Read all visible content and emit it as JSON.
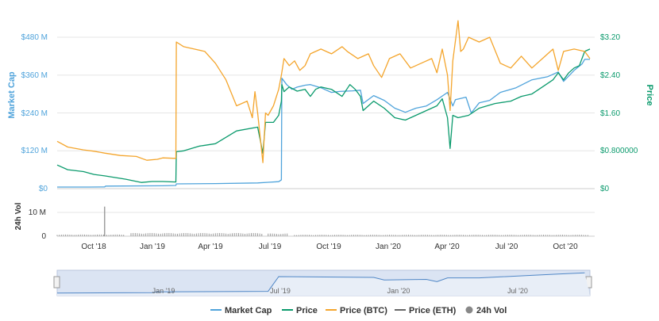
{
  "chart_data": {
    "type": "line",
    "title": "",
    "y_left": {
      "label": "Market Cap",
      "ticks": [
        "$0",
        "$120 M",
        "$240 M",
        "$360 M",
        "$480 M"
      ],
      "ylim": [
        0,
        480
      ]
    },
    "y_right": {
      "label": "Price",
      "ticks": [
        "$0",
        "$0.800000",
        "$1.60",
        "$2.40",
        "$3.20"
      ],
      "ylim": [
        0,
        3.2
      ]
    },
    "volume_axis": {
      "label": "24h Vol",
      "ticks": [
        "0",
        "10 M"
      ]
    },
    "x_ticks": [
      "Oct '18",
      "Jan '19",
      "Apr '19",
      "Jul '19",
      "Oct '19",
      "Jan '20",
      "Apr '20",
      "Jul '20",
      "Oct '20"
    ],
    "navigator_ticks": [
      "Jan '19",
      "Jul '19",
      "Jan '20",
      "Jul '20"
    ],
    "grid": true,
    "legend_position": "bottom-center",
    "series": [
      {
        "name": "Market Cap",
        "color": "#4fa3db",
        "axis": "left",
        "points": [
          [
            0,
            5
          ],
          [
            0.06,
            5
          ],
          [
            0.09,
            5.5
          ],
          [
            0.092,
            8
          ],
          [
            0.2,
            9
          ],
          [
            0.225,
            10
          ],
          [
            0.226,
            15
          ],
          [
            0.3,
            16
          ],
          [
            0.38,
            18
          ],
          [
            0.4,
            20
          ],
          [
            0.42,
            22
          ],
          [
            0.425,
            28
          ],
          [
            0.426,
            350
          ],
          [
            0.435,
            330
          ],
          [
            0.445,
            315
          ],
          [
            0.455,
            322
          ],
          [
            0.47,
            328
          ],
          [
            0.48,
            330
          ],
          [
            0.5,
            320
          ],
          [
            0.52,
            305
          ],
          [
            0.535,
            308
          ],
          [
            0.56,
            310
          ],
          [
            0.575,
            312
          ],
          [
            0.58,
            270
          ],
          [
            0.6,
            295
          ],
          [
            0.62,
            280
          ],
          [
            0.64,
            255
          ],
          [
            0.66,
            242
          ],
          [
            0.68,
            255
          ],
          [
            0.7,
            262
          ],
          [
            0.72,
            282
          ],
          [
            0.74,
            305
          ],
          [
            0.75,
            262
          ],
          [
            0.755,
            282
          ],
          [
            0.775,
            290
          ],
          [
            0.785,
            240
          ],
          [
            0.8,
            272
          ],
          [
            0.82,
            280
          ],
          [
            0.84,
            305
          ],
          [
            0.87,
            320
          ],
          [
            0.9,
            345
          ],
          [
            0.93,
            355
          ],
          [
            0.95,
            370
          ],
          [
            0.96,
            340
          ],
          [
            0.98,
            375
          ],
          [
            0.995,
            395
          ],
          [
            1.0,
            410
          ],
          [
            1.01,
            410
          ]
        ]
      },
      {
        "name": "Price",
        "color": "#0a9a6c",
        "axis": "right",
        "points": [
          [
            0,
            0.5
          ],
          [
            0.02,
            0.4
          ],
          [
            0.05,
            0.36
          ],
          [
            0.07,
            0.3
          ],
          [
            0.09,
            0.27
          ],
          [
            0.13,
            0.2
          ],
          [
            0.16,
            0.13
          ],
          [
            0.18,
            0.15
          ],
          [
            0.2,
            0.15
          ],
          [
            0.225,
            0.14
          ],
          [
            0.226,
            0.78
          ],
          [
            0.24,
            0.8
          ],
          [
            0.27,
            0.9
          ],
          [
            0.3,
            0.95
          ],
          [
            0.34,
            1.22
          ],
          [
            0.38,
            1.3
          ],
          [
            0.39,
            0.75
          ],
          [
            0.395,
            1.4
          ],
          [
            0.41,
            1.4
          ],
          [
            0.42,
            1.55
          ],
          [
            0.425,
            1.85
          ],
          [
            0.426,
            2.2
          ],
          [
            0.43,
            2.05
          ],
          [
            0.44,
            2.15
          ],
          [
            0.455,
            2.06
          ],
          [
            0.47,
            2.1
          ],
          [
            0.48,
            1.95
          ],
          [
            0.49,
            2.1
          ],
          [
            0.5,
            2.15
          ],
          [
            0.52,
            2.1
          ],
          [
            0.54,
            1.95
          ],
          [
            0.555,
            2.2
          ],
          [
            0.565,
            2.1
          ],
          [
            0.575,
            1.95
          ],
          [
            0.58,
            1.65
          ],
          [
            0.6,
            1.85
          ],
          [
            0.62,
            1.7
          ],
          [
            0.64,
            1.5
          ],
          [
            0.66,
            1.45
          ],
          [
            0.68,
            1.55
          ],
          [
            0.7,
            1.65
          ],
          [
            0.72,
            1.75
          ],
          [
            0.73,
            1.9
          ],
          [
            0.74,
            1.5
          ],
          [
            0.745,
            0.85
          ],
          [
            0.75,
            1.55
          ],
          [
            0.76,
            1.5
          ],
          [
            0.78,
            1.55
          ],
          [
            0.8,
            1.7
          ],
          [
            0.83,
            1.8
          ],
          [
            0.86,
            1.85
          ],
          [
            0.88,
            1.95
          ],
          [
            0.9,
            2.0
          ],
          [
            0.92,
            2.15
          ],
          [
            0.94,
            2.3
          ],
          [
            0.95,
            2.45
          ],
          [
            0.96,
            2.3
          ],
          [
            0.97,
            2.45
          ],
          [
            0.98,
            2.55
          ],
          [
            0.99,
            2.6
          ],
          [
            1.0,
            2.9
          ],
          [
            1.01,
            2.95
          ]
        ]
      },
      {
        "name": "Price (BTC)",
        "color": "#f4a52c",
        "axis": "right",
        "points": [
          [
            0,
            1.0
          ],
          [
            0.02,
            0.88
          ],
          [
            0.05,
            0.82
          ],
          [
            0.07,
            0.79
          ],
          [
            0.09,
            0.75
          ],
          [
            0.12,
            0.7
          ],
          [
            0.15,
            0.68
          ],
          [
            0.17,
            0.6
          ],
          [
            0.19,
            0.62
          ],
          [
            0.2,
            0.65
          ],
          [
            0.225,
            0.64
          ],
          [
            0.226,
            3.1
          ],
          [
            0.24,
            3.0
          ],
          [
            0.26,
            2.95
          ],
          [
            0.28,
            2.9
          ],
          [
            0.3,
            2.65
          ],
          [
            0.32,
            2.3
          ],
          [
            0.34,
            1.75
          ],
          [
            0.36,
            1.85
          ],
          [
            0.37,
            1.5
          ],
          [
            0.375,
            2.05
          ],
          [
            0.38,
            1.6
          ],
          [
            0.39,
            0.55
          ],
          [
            0.395,
            1.6
          ],
          [
            0.4,
            1.55
          ],
          [
            0.41,
            1.75
          ],
          [
            0.42,
            2.1
          ],
          [
            0.425,
            2.4
          ],
          [
            0.43,
            2.75
          ],
          [
            0.44,
            2.6
          ],
          [
            0.45,
            2.7
          ],
          [
            0.46,
            2.5
          ],
          [
            0.47,
            2.6
          ],
          [
            0.48,
            2.85
          ],
          [
            0.5,
            2.95
          ],
          [
            0.52,
            2.85
          ],
          [
            0.54,
            3.0
          ],
          [
            0.55,
            2.9
          ],
          [
            0.57,
            2.75
          ],
          [
            0.59,
            2.85
          ],
          [
            0.6,
            2.6
          ],
          [
            0.615,
            2.35
          ],
          [
            0.63,
            2.75
          ],
          [
            0.65,
            2.85
          ],
          [
            0.67,
            2.55
          ],
          [
            0.69,
            2.65
          ],
          [
            0.71,
            2.75
          ],
          [
            0.72,
            2.45
          ],
          [
            0.73,
            2.95
          ],
          [
            0.74,
            2.4
          ],
          [
            0.745,
            1.65
          ],
          [
            0.75,
            2.7
          ],
          [
            0.76,
            3.55
          ],
          [
            0.765,
            2.9
          ],
          [
            0.77,
            2.95
          ],
          [
            0.78,
            3.2
          ],
          [
            0.8,
            3.1
          ],
          [
            0.82,
            3.2
          ],
          [
            0.84,
            2.65
          ],
          [
            0.86,
            2.55
          ],
          [
            0.88,
            2.8
          ],
          [
            0.9,
            2.55
          ],
          [
            0.92,
            2.75
          ],
          [
            0.94,
            2.95
          ],
          [
            0.95,
            2.5
          ],
          [
            0.96,
            2.9
          ],
          [
            0.98,
            2.95
          ],
          [
            1.0,
            2.9
          ],
          [
            1.01,
            2.75
          ]
        ]
      },
      {
        "name": "Price (ETH)",
        "color": "#666666",
        "axis": "right",
        "points": []
      }
    ],
    "volume": {
      "name": "24h Vol",
      "color": "#888888",
      "spike_position": 0.09,
      "spike_value": 14,
      "blocks": [
        {
          "from": 0.0,
          "to": 0.09,
          "level": 0.7
        },
        {
          "from": 0.09,
          "to": 0.13,
          "level": 0.7
        },
        {
          "from": 0.14,
          "to": 0.39,
          "level": 1.3
        },
        {
          "from": 0.4,
          "to": 0.44,
          "level": 1.1
        },
        {
          "from": 0.45,
          "to": 1.01,
          "level": 0.6
        }
      ]
    },
    "navigator": {
      "points": [
        [
          0,
          0.1
        ],
        [
          0.18,
          0.12
        ],
        [
          0.19,
          0.15
        ],
        [
          0.4,
          0.17
        ],
        [
          0.42,
          0.75
        ],
        [
          0.6,
          0.72
        ],
        [
          0.62,
          0.62
        ],
        [
          0.7,
          0.64
        ],
        [
          0.72,
          0.55
        ],
        [
          0.74,
          0.7
        ],
        [
          0.8,
          0.7
        ],
        [
          0.9,
          0.8
        ],
        [
          0.95,
          0.85
        ],
        [
          1.0,
          0.9
        ]
      ]
    }
  }
}
